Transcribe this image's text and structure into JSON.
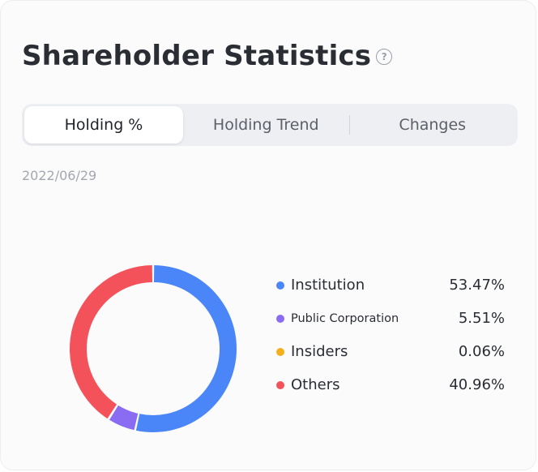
{
  "header": {
    "title": "Shareholder Statistics",
    "help_icon": "question-circle-icon",
    "help_glyph": "?"
  },
  "tabs": [
    {
      "label": "Holding %",
      "active": true
    },
    {
      "label": "Holding Trend",
      "active": false
    },
    {
      "label": "Changes",
      "active": false
    }
  ],
  "date": "2022/06/29",
  "chart_data": {
    "type": "pie",
    "style": "donut",
    "categories": [
      "Institution",
      "Public Corporation",
      "Insiders",
      "Others"
    ],
    "values": [
      53.47,
      5.51,
      0.06,
      40.96
    ],
    "value_labels": [
      "53.47%",
      "5.51%",
      "0.06%",
      "40.96%"
    ],
    "colors": [
      "#4a86f7",
      "#8a6cf2",
      "#f3b01c",
      "#f4525a"
    ],
    "legend_position": "right"
  }
}
